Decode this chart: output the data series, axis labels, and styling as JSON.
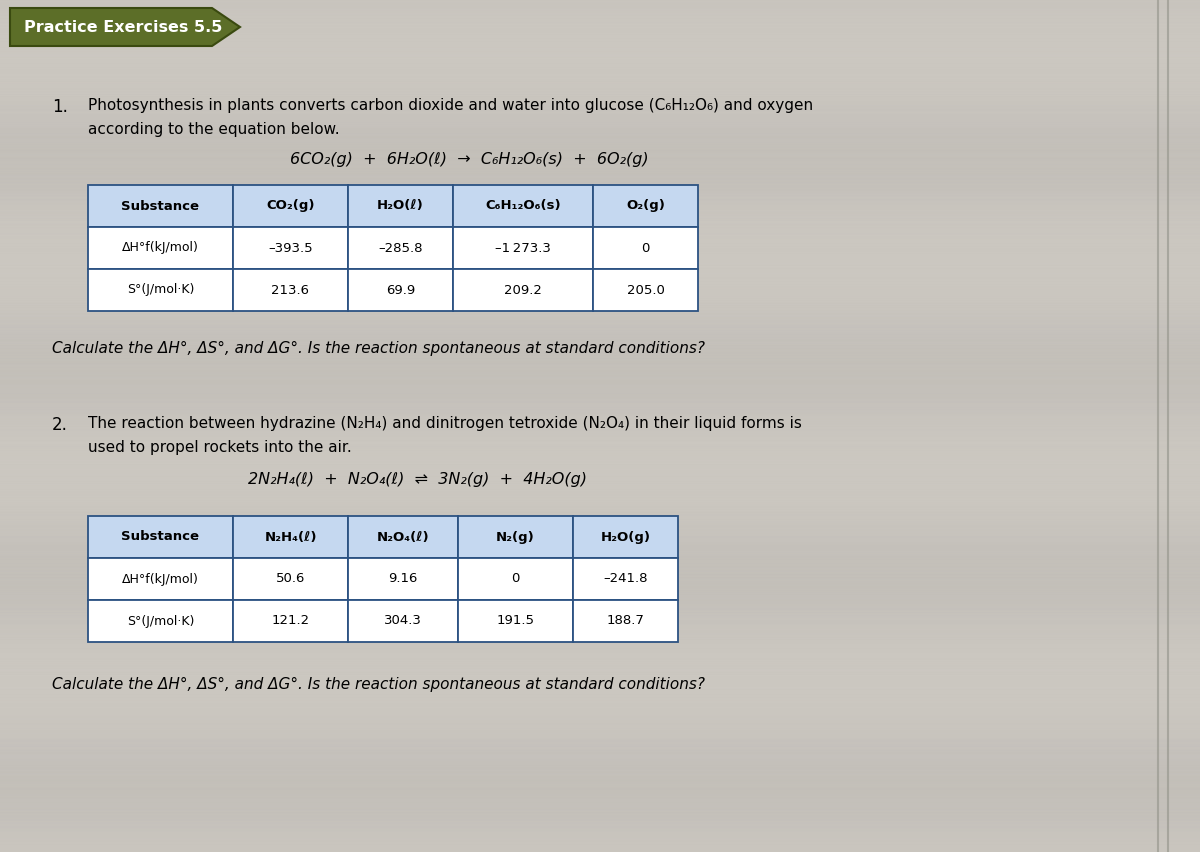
{
  "title": "Practice Exercises 5.5",
  "background_color": "#c8c4bc",
  "header_bg": "#6b7c3a",
  "table_header_bg": "#c5d8f0",
  "table_border_color": "#2f5496",
  "problem1": {
    "number": "1.",
    "text_line1": "Photosynthesis in plants converts carbon dioxide and water into glucose (C₆H₁₂O₆) and oxygen",
    "text_line2": "according to the equation below.",
    "equation": "6CO₂(g)  +  6H₂O(ℓ)  →  C₆H₁₂O₆(s)  +  6O₂(g)",
    "col0": "Substance",
    "col1": "CO₂(g)",
    "col2": "H₂O(ℓ)",
    "col3": "C₆H₁₂O₆(s)",
    "col4": "O₂(g)",
    "row1_label": "ΔH°f(kJ/mol)",
    "row2_label": "S°(J/mol·K)",
    "ahf_co2": "–393.5",
    "ahf_h2o": "–285.8",
    "ahf_glucose": "–1 273.3",
    "ahf_o2": "0",
    "s_co2": "213.6",
    "s_h2o": "69.9",
    "s_glucose": "209.2",
    "s_o2": "205.0",
    "question": "Calculate the ΔH°, ΔS°, and ΔG°. Is the reaction spontaneous at standard conditions?"
  },
  "problem2": {
    "number": "2.",
    "text_line1": "The reaction between hydrazine (N₂H₄) and dinitrogen tetroxide (N₂O₄) in their liquid forms is",
    "text_line2": "used to propel rockets into the air.",
    "equation": "2N₂H₄(ℓ)  +  N₂O₄(ℓ)  ⇌  3N₂(g)  +  4H₂O(g)",
    "col0": "Substance",
    "col1": "N₂H₄(ℓ)",
    "col2": "N₂O₄(ℓ)",
    "col3": "N₂(g)",
    "col4": "H₂O(g)",
    "row1_label": "ΔH°f(kJ/mol)",
    "row2_label": "S°(J/mol·K)",
    "ahf_1": "50.6",
    "ahf_2": "9.16",
    "ahf_3": "0",
    "ahf_4": "–241.8",
    "s_1": "121.2",
    "s_2": "304.3",
    "s_3": "191.5",
    "s_4": "188.7",
    "question": "Calculate the ΔH°, ΔS°, and ΔG°. Is the reaction spontaneous at standard conditions?"
  }
}
